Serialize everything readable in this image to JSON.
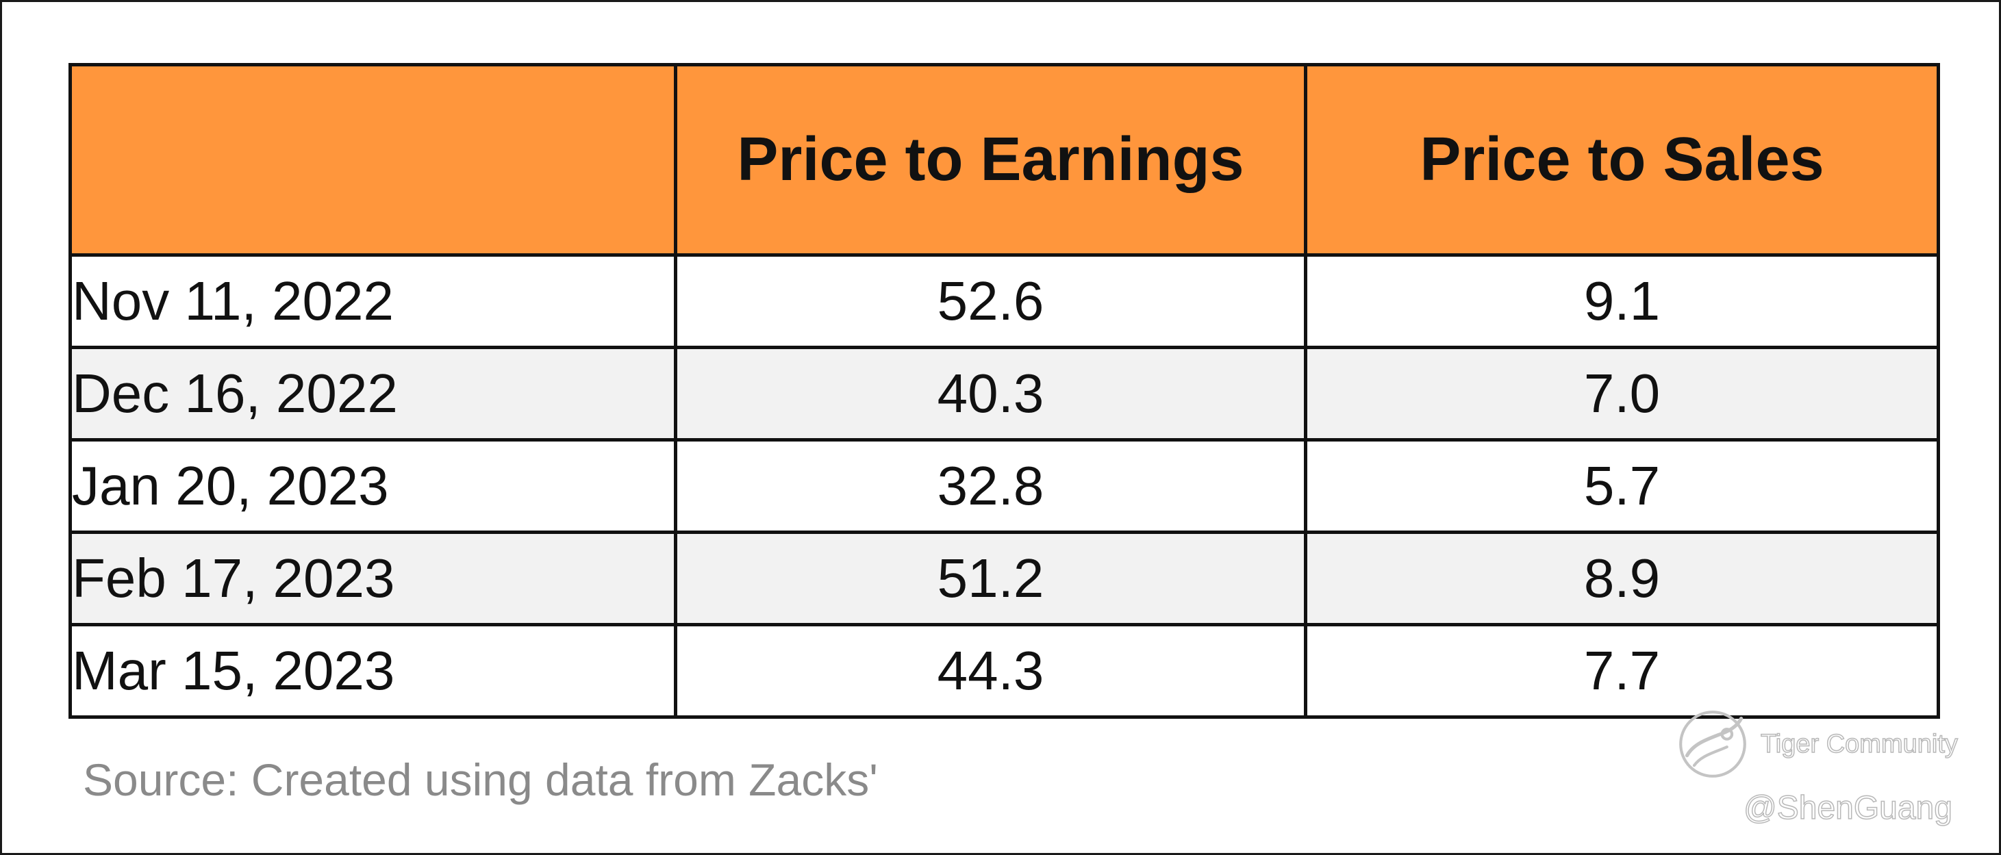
{
  "table": {
    "columns": [
      "",
      "Price to Earnings",
      "Price to Sales"
    ],
    "rows": [
      {
        "date": "Nov 11, 2022",
        "pe": "52.6",
        "ps": "9.1"
      },
      {
        "date": "Dec 16, 2022",
        "pe": "40.3",
        "ps": "7.0"
      },
      {
        "date": "Jan 20, 2023",
        "pe": "32.8",
        "ps": "5.7"
      },
      {
        "date": "Feb 17, 2023",
        "pe": "51.2",
        "ps": "8.9"
      },
      {
        "date": "Mar 15, 2023",
        "pe": "44.3",
        "ps": "7.7"
      }
    ]
  },
  "source": "Source: Created using data from Zacks'",
  "watermark": {
    "brand": "Tiger Community",
    "handle": "@ShenGuang",
    "icon": "tiger-logo-icon"
  },
  "colors": {
    "header_bg": "#ff963c",
    "header_text": "#ffffff",
    "alt_row_bg": "#f2f2f2",
    "border": "#111111",
    "source_text": "#8a8a8a"
  },
  "chart_data": {
    "type": "table",
    "columns": [
      "",
      "Price to Earnings",
      "Price to Sales"
    ],
    "rows": [
      [
        "Nov 11, 2022",
        52.6,
        9.1
      ],
      [
        "Dec 16, 2022",
        40.3,
        7.0
      ],
      [
        "Jan 20, 2023",
        32.8,
        5.7
      ],
      [
        "Feb 17, 2023",
        51.2,
        8.9
      ],
      [
        "Mar 15, 2023",
        44.3,
        7.7
      ]
    ]
  }
}
